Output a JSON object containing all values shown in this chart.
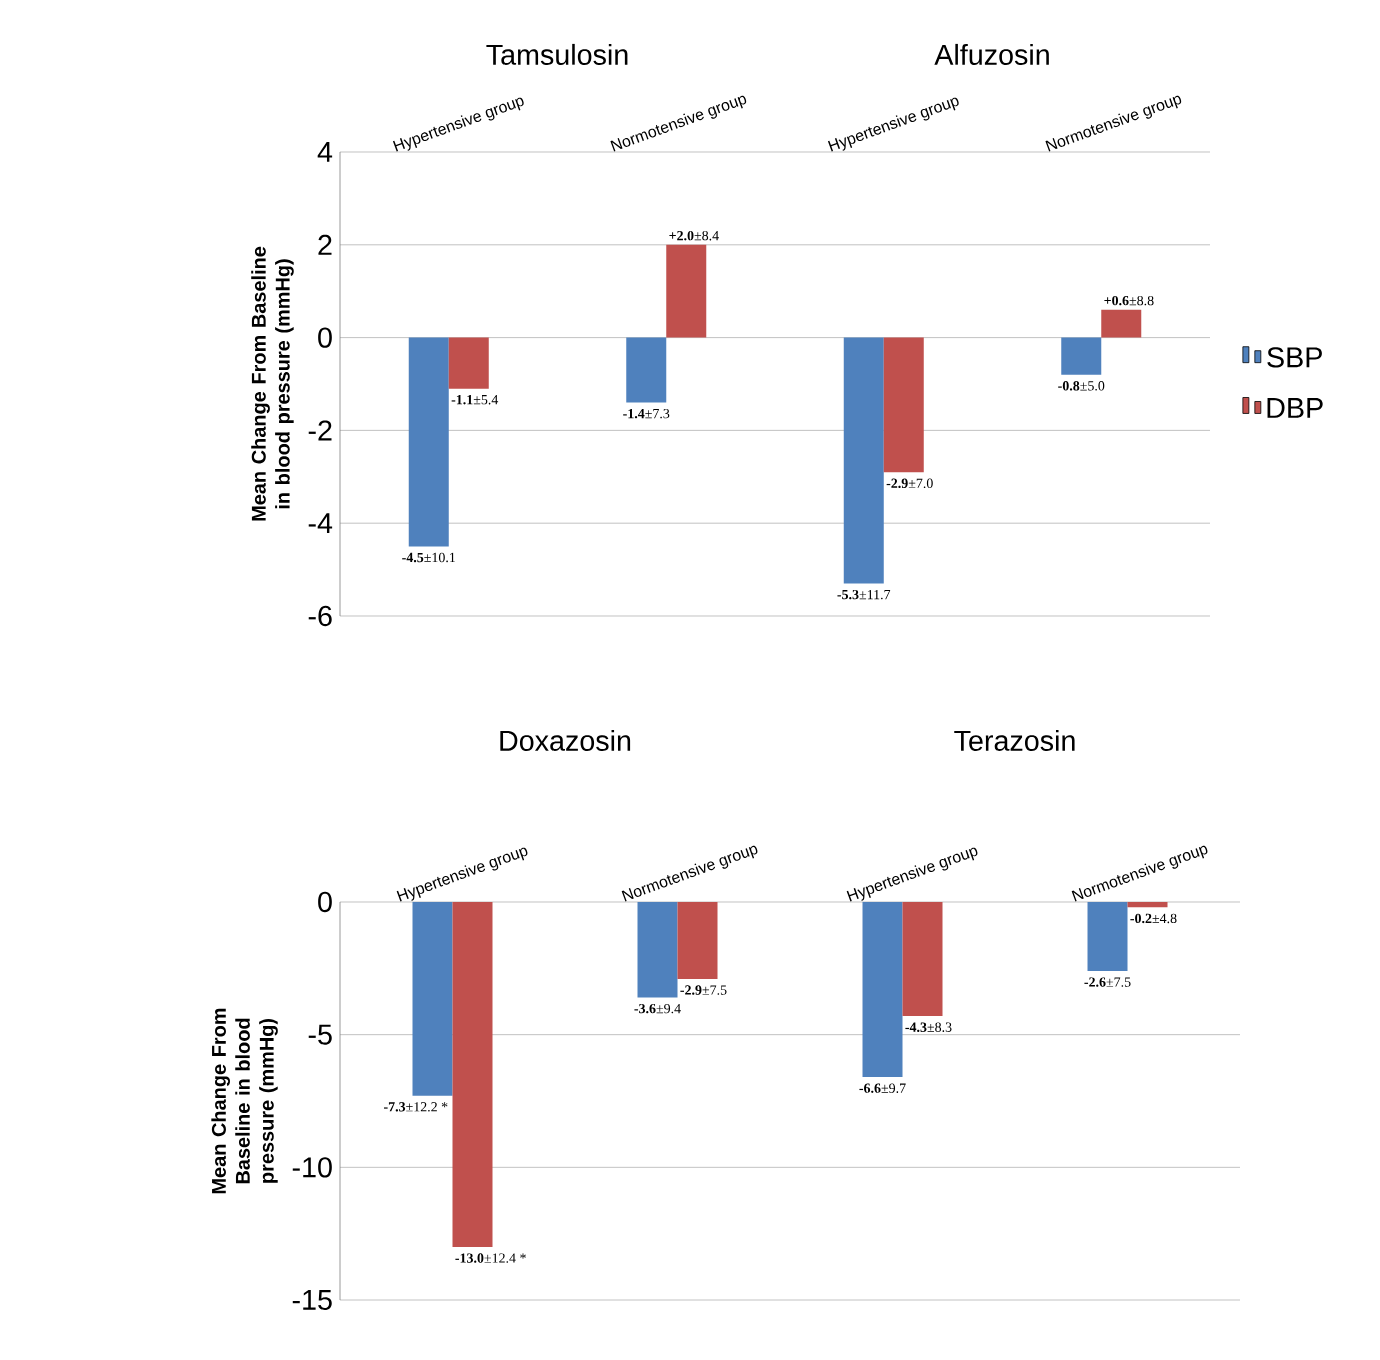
{
  "chart_data": [
    {
      "type": "bar",
      "ylabel": "Mean Change From Baseline in blood pressure (mmHg)",
      "categories": [
        "Hypertensive group",
        "Normotensive group",
        "Hypertensive group",
        "Normotensive group"
      ],
      "annotations": [
        "Tamsulosin",
        "Alfuzosin"
      ],
      "series": [
        {
          "name": "SBP",
          "color": "#4f81bd",
          "values": [
            -4.5,
            -1.4,
            -5.3,
            -0.8
          ],
          "value_labels": [
            "**-4.5**±10.1",
            "**-1.4**±7.3",
            "**-5.3**±11.7",
            "**-0.8**±5.0"
          ]
        },
        {
          "name": "DBP",
          "color": "#c0504d",
          "values": [
            -1.1,
            2.0,
            -2.9,
            0.6
          ],
          "value_labels": [
            "**-1.1**±5.4",
            "**+2.0**±8.4",
            "**-2.9**±7.0",
            "**+0.6**±8.8"
          ]
        }
      ],
      "ylim": [
        -6,
        4
      ],
      "yticks": [
        -6,
        -4,
        -2,
        0,
        2,
        4
      ],
      "grid": "y",
      "legend": "right"
    },
    {
      "type": "bar",
      "ylabel": "Mean Change From Baseline in blood pressure (mmHg)",
      "categories": [
        "Hypertensive group",
        "Normotensive group",
        "Hypertensive group",
        "Normotensive group"
      ],
      "annotations": [
        "Doxazosin",
        "Terazosin"
      ],
      "series": [
        {
          "color": "#4f81bd",
          "values": [
            -7.3,
            -3.6,
            -6.6,
            -2.6
          ],
          "value_labels": [
            "**-7.3**±12.2 *",
            "**-3.6**±9.4",
            "**-6.6**±9.7",
            "**-2.6**±7.5"
          ]
        },
        {
          "color": "#c0504d",
          "values": [
            -13.0,
            -2.9,
            -4.3,
            -0.2
          ],
          "value_labels": [
            "**-13.0**±12.4 *",
            "**-2.9**±7.5",
            "**-4.3**±8.3",
            "**-0.2**±4.8"
          ]
        }
      ],
      "ylim": [
        -15,
        0
      ],
      "yticks": [
        -15,
        -10,
        -5,
        0
      ],
      "grid": "y"
    }
  ]
}
